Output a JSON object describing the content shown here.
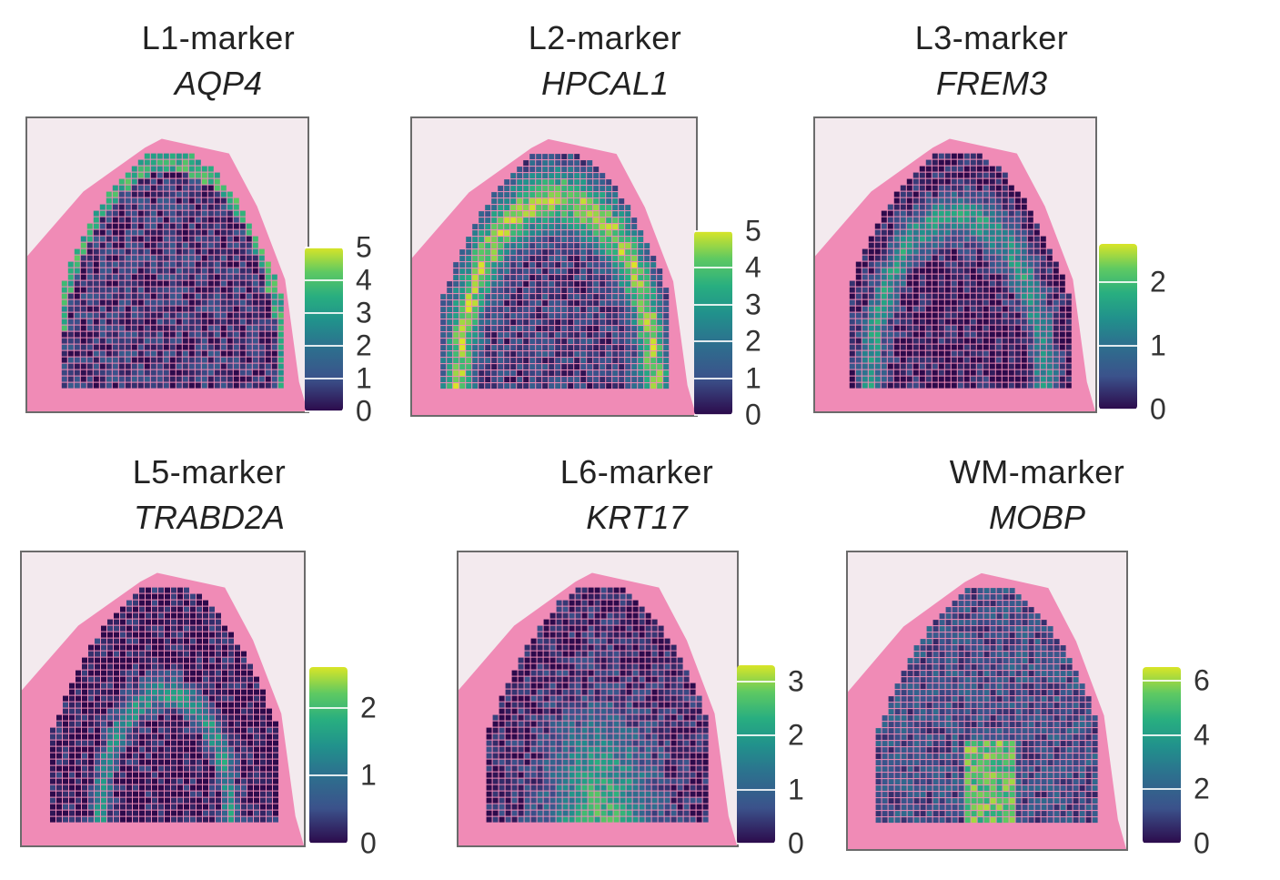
{
  "chart_data": [
    {
      "type": "heatmap",
      "title": "L1-marker",
      "gene": "AQP4",
      "colorbar": {
        "min": 0,
        "max": 5,
        "ticks": [
          "0",
          "1",
          "2",
          "3",
          "4",
          "5"
        ]
      },
      "pattern": "rim"
    },
    {
      "type": "heatmap",
      "title": "L2-marker",
      "gene": "HPCAL1",
      "colorbar": {
        "min": 0,
        "max": 5,
        "ticks": [
          "0",
          "1",
          "2",
          "3",
          "4",
          "5"
        ]
      },
      "pattern": "outer-band"
    },
    {
      "type": "heatmap",
      "title": "L3-marker",
      "gene": "FREM3",
      "colorbar": {
        "min": 0,
        "max": 2.6,
        "ticks": [
          "0",
          "1",
          "2"
        ]
      },
      "pattern": "mid-band"
    },
    {
      "type": "heatmap",
      "title": "L5-marker",
      "gene": "TRABD2A",
      "colorbar": {
        "min": 0,
        "max": 2.6,
        "ticks": [
          "0",
          "1",
          "2"
        ]
      },
      "pattern": "inner-band"
    },
    {
      "type": "heatmap",
      "title": "L6-marker",
      "gene": "KRT17",
      "colorbar": {
        "min": 0,
        "max": 3.3,
        "ticks": [
          "0",
          "1",
          "2",
          "3"
        ]
      },
      "pattern": "core"
    },
    {
      "type": "heatmap",
      "title": "WM-marker",
      "gene": "MOBP",
      "colorbar": {
        "min": 0,
        "max": 6.5,
        "ticks": [
          "0",
          "2",
          "4",
          "6"
        ]
      },
      "pattern": "center"
    }
  ],
  "colors": {
    "tissue_bg": "#f08bb6",
    "plot_bg": "#f3eaee",
    "low": "#2c0a4b",
    "high": "#d9e527"
  }
}
